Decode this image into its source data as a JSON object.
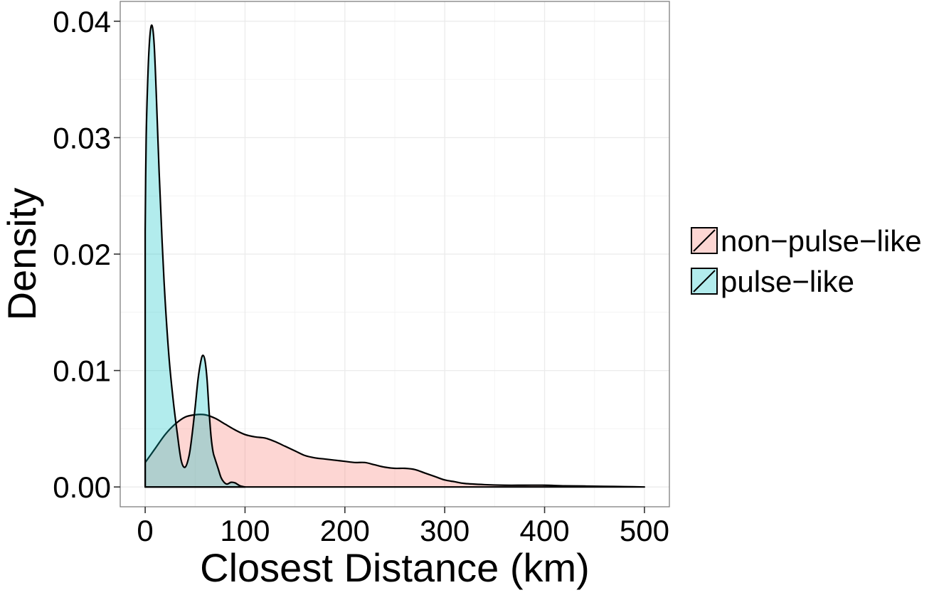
{
  "chart_data": {
    "type": "area",
    "xlabel": "Closest Distance (km)",
    "ylabel": "Density",
    "xlim": [
      -25,
      525
    ],
    "ylim": [
      -0.0017,
      0.0417
    ],
    "xticks": [
      0,
      100,
      200,
      300,
      400,
      500
    ],
    "xtick_labels": [
      "0",
      "100",
      "200",
      "300",
      "400",
      "500"
    ],
    "yticks": [
      0.0,
      0.01,
      0.02,
      0.03,
      0.04
    ],
    "ytick_labels": [
      "0.00",
      "0.01",
      "0.02",
      "0.03",
      "0.04"
    ],
    "grid": true,
    "legend_position": "right",
    "series": [
      {
        "name": "non−pulse−like",
        "fill": "#f8766d",
        "fill_opacity": 0.3,
        "x": [
          0,
          10,
          20,
          30,
          40,
          50,
          60,
          70,
          80,
          90,
          100,
          110,
          120,
          130,
          140,
          150,
          160,
          170,
          180,
          190,
          200,
          210,
          220,
          230,
          240,
          250,
          260,
          270,
          280,
          290,
          300,
          310,
          320,
          340,
          360,
          380,
          400,
          420,
          440,
          460,
          480,
          500
        ],
        "y": [
          0.0021,
          0.0033,
          0.0045,
          0.0054,
          0.006,
          0.0062,
          0.0062,
          0.0059,
          0.0054,
          0.0049,
          0.0045,
          0.0043,
          0.0042,
          0.0039,
          0.0035,
          0.0031,
          0.0027,
          0.0025,
          0.0024,
          0.0023,
          0.0022,
          0.0021,
          0.0021,
          0.0019,
          0.0017,
          0.0016,
          0.0016,
          0.0015,
          0.0012,
          0.0009,
          0.0006,
          0.00045,
          0.0003,
          0.0002,
          0.00015,
          0.00015,
          0.00015,
          0.0001,
          8e-05,
          5e-05,
          3e-05,
          0.0
        ]
      },
      {
        "name": "pulse−like",
        "fill": "#00bfc4",
        "fill_opacity": 0.3,
        "x": [
          0,
          1,
          3,
          5,
          7,
          9,
          11,
          14,
          17,
          20,
          24,
          28,
          32,
          36,
          40,
          44,
          47,
          50,
          53,
          56,
          58,
          60,
          62,
          64,
          66,
          68,
          70,
          73,
          76,
          79,
          82,
          86,
          90,
          95,
          100
        ],
        "y": [
          0.022,
          0.03,
          0.036,
          0.039,
          0.0396,
          0.038,
          0.034,
          0.027,
          0.021,
          0.016,
          0.011,
          0.0075,
          0.0047,
          0.0023,
          0.0017,
          0.0027,
          0.0045,
          0.0068,
          0.0093,
          0.0109,
          0.0113,
          0.0108,
          0.0092,
          0.0065,
          0.0043,
          0.003,
          0.0024,
          0.0016,
          0.0008,
          0.0004,
          0.00025,
          0.0004,
          0.00035,
          0.0001,
          0.0
        ]
      }
    ]
  }
}
